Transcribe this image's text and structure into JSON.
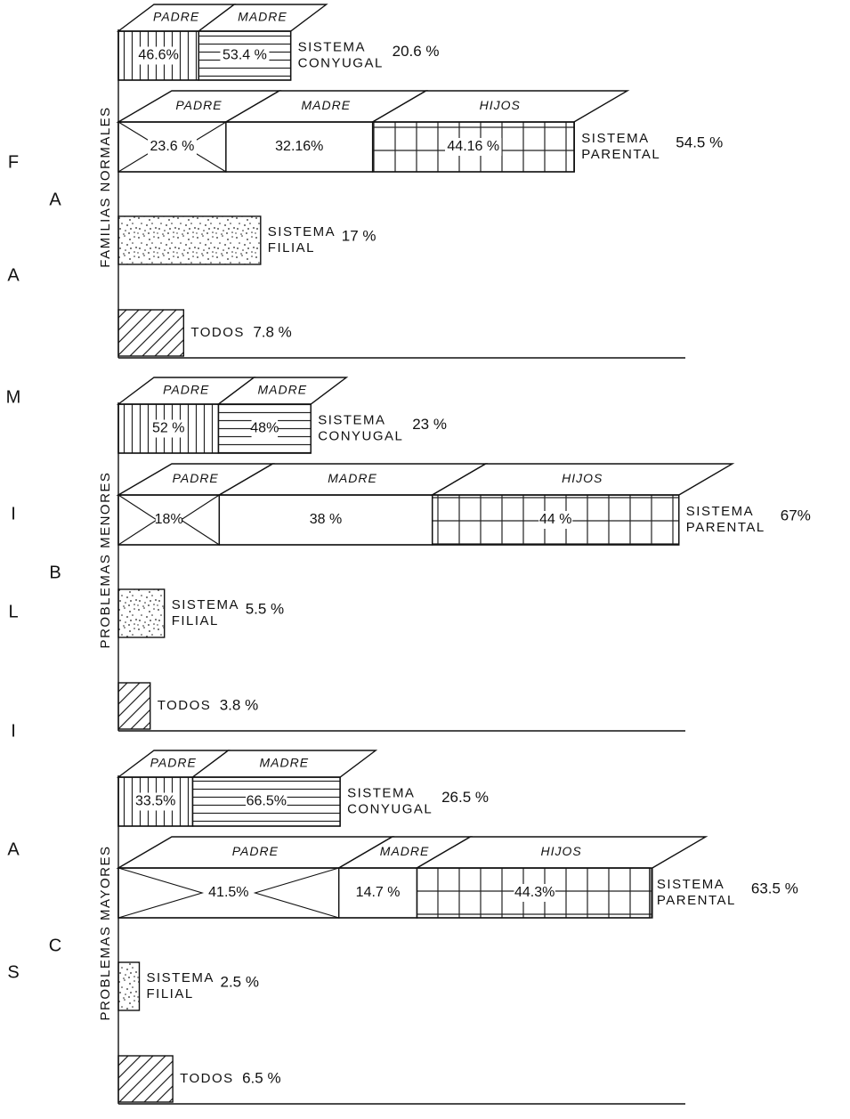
{
  "letters": [
    "F",
    "A",
    "M",
    "I",
    "L",
    "I",
    "A",
    "S"
  ],
  "chart_data": [
    {
      "type": "bar",
      "group": "A",
      "axis_label": "FAMILIAS NORMALES",
      "bars": [
        {
          "name": [
            "SISTEMA",
            "CONYUGAL"
          ],
          "value": 20.6,
          "value_label": "20.6 %",
          "segments": [
            {
              "name": "PADRE",
              "value": 46.6,
              "value_label": "46.6%"
            },
            {
              "name": "MADRE",
              "value": 53.4,
              "value_label": "53.4 %"
            }
          ]
        },
        {
          "name": [
            "SISTEMA",
            "PARENTAL"
          ],
          "value": 54.5,
          "value_label": "54.5 %",
          "segments": [
            {
              "name": "PADRE",
              "value": 23.6,
              "value_label": "23.6 %"
            },
            {
              "name": "MADRE",
              "value": 32.16,
              "value_label": "32.16%"
            },
            {
              "name": "HIJOS",
              "value": 44.16,
              "value_label": "44.16 %"
            }
          ]
        },
        {
          "name": [
            "SISTEMA",
            "FILIAL"
          ],
          "value": 17,
          "value_label": "17 %"
        },
        {
          "name": [
            "TODOS"
          ],
          "value": 7.8,
          "value_label": "7.8 %"
        }
      ]
    },
    {
      "type": "bar",
      "group": "B",
      "axis_label": "PROBLEMAS MENORES",
      "bars": [
        {
          "name": [
            "SISTEMA",
            "CONYUGAL"
          ],
          "value": 23,
          "value_label": "23 %",
          "segments": [
            {
              "name": "PADRE",
              "value": 52,
              "value_label": "52 %"
            },
            {
              "name": "MADRE",
              "value": 48,
              "value_label": "48%"
            }
          ]
        },
        {
          "name": [
            "SISTEMA",
            "PARENTAL"
          ],
          "value": 67,
          "value_label": "67%",
          "segments": [
            {
              "name": "PADRE",
              "value": 18,
              "value_label": "18%"
            },
            {
              "name": "MADRE",
              "value": 38,
              "value_label": "38 %"
            },
            {
              "name": "HIJOS",
              "value": 44,
              "value_label": "44 %"
            }
          ]
        },
        {
          "name": [
            "SISTEMA",
            "FILIAL"
          ],
          "value": 5.5,
          "value_label": "5.5 %"
        },
        {
          "name": [
            "TODOS"
          ],
          "value": 3.8,
          "value_label": "3.8 %"
        }
      ]
    },
    {
      "type": "bar",
      "group": "C",
      "axis_label": "PROBLEMAS MAYORES",
      "bars": [
        {
          "name": [
            "SISTEMA",
            "CONYUGAL"
          ],
          "value": 26.5,
          "value_label": "26.5 %",
          "segments": [
            {
              "name": "PADRE",
              "value": 33.5,
              "value_label": "33.5%"
            },
            {
              "name": "MADRE",
              "value": 66.5,
              "value_label": "66.5%"
            }
          ]
        },
        {
          "name": [
            "SISTEMA",
            "PARENTAL"
          ],
          "value": 63.5,
          "value_label": "63.5 %",
          "segments": [
            {
              "name": "PADRE",
              "value": 41.5,
              "value_label": "41.5%"
            },
            {
              "name": "MADRE",
              "value": 14.7,
              "value_label": "14.7 %"
            },
            {
              "name": "HIJOS",
              "value": 44.3,
              "value_label": "44.3%"
            }
          ]
        },
        {
          "name": [
            "SISTEMA",
            "FILIAL"
          ],
          "value": 2.5,
          "value_label": "2.5 %"
        },
        {
          "name": [
            "TODOS"
          ],
          "value": 6.5,
          "value_label": "6.5 %"
        }
      ]
    }
  ]
}
